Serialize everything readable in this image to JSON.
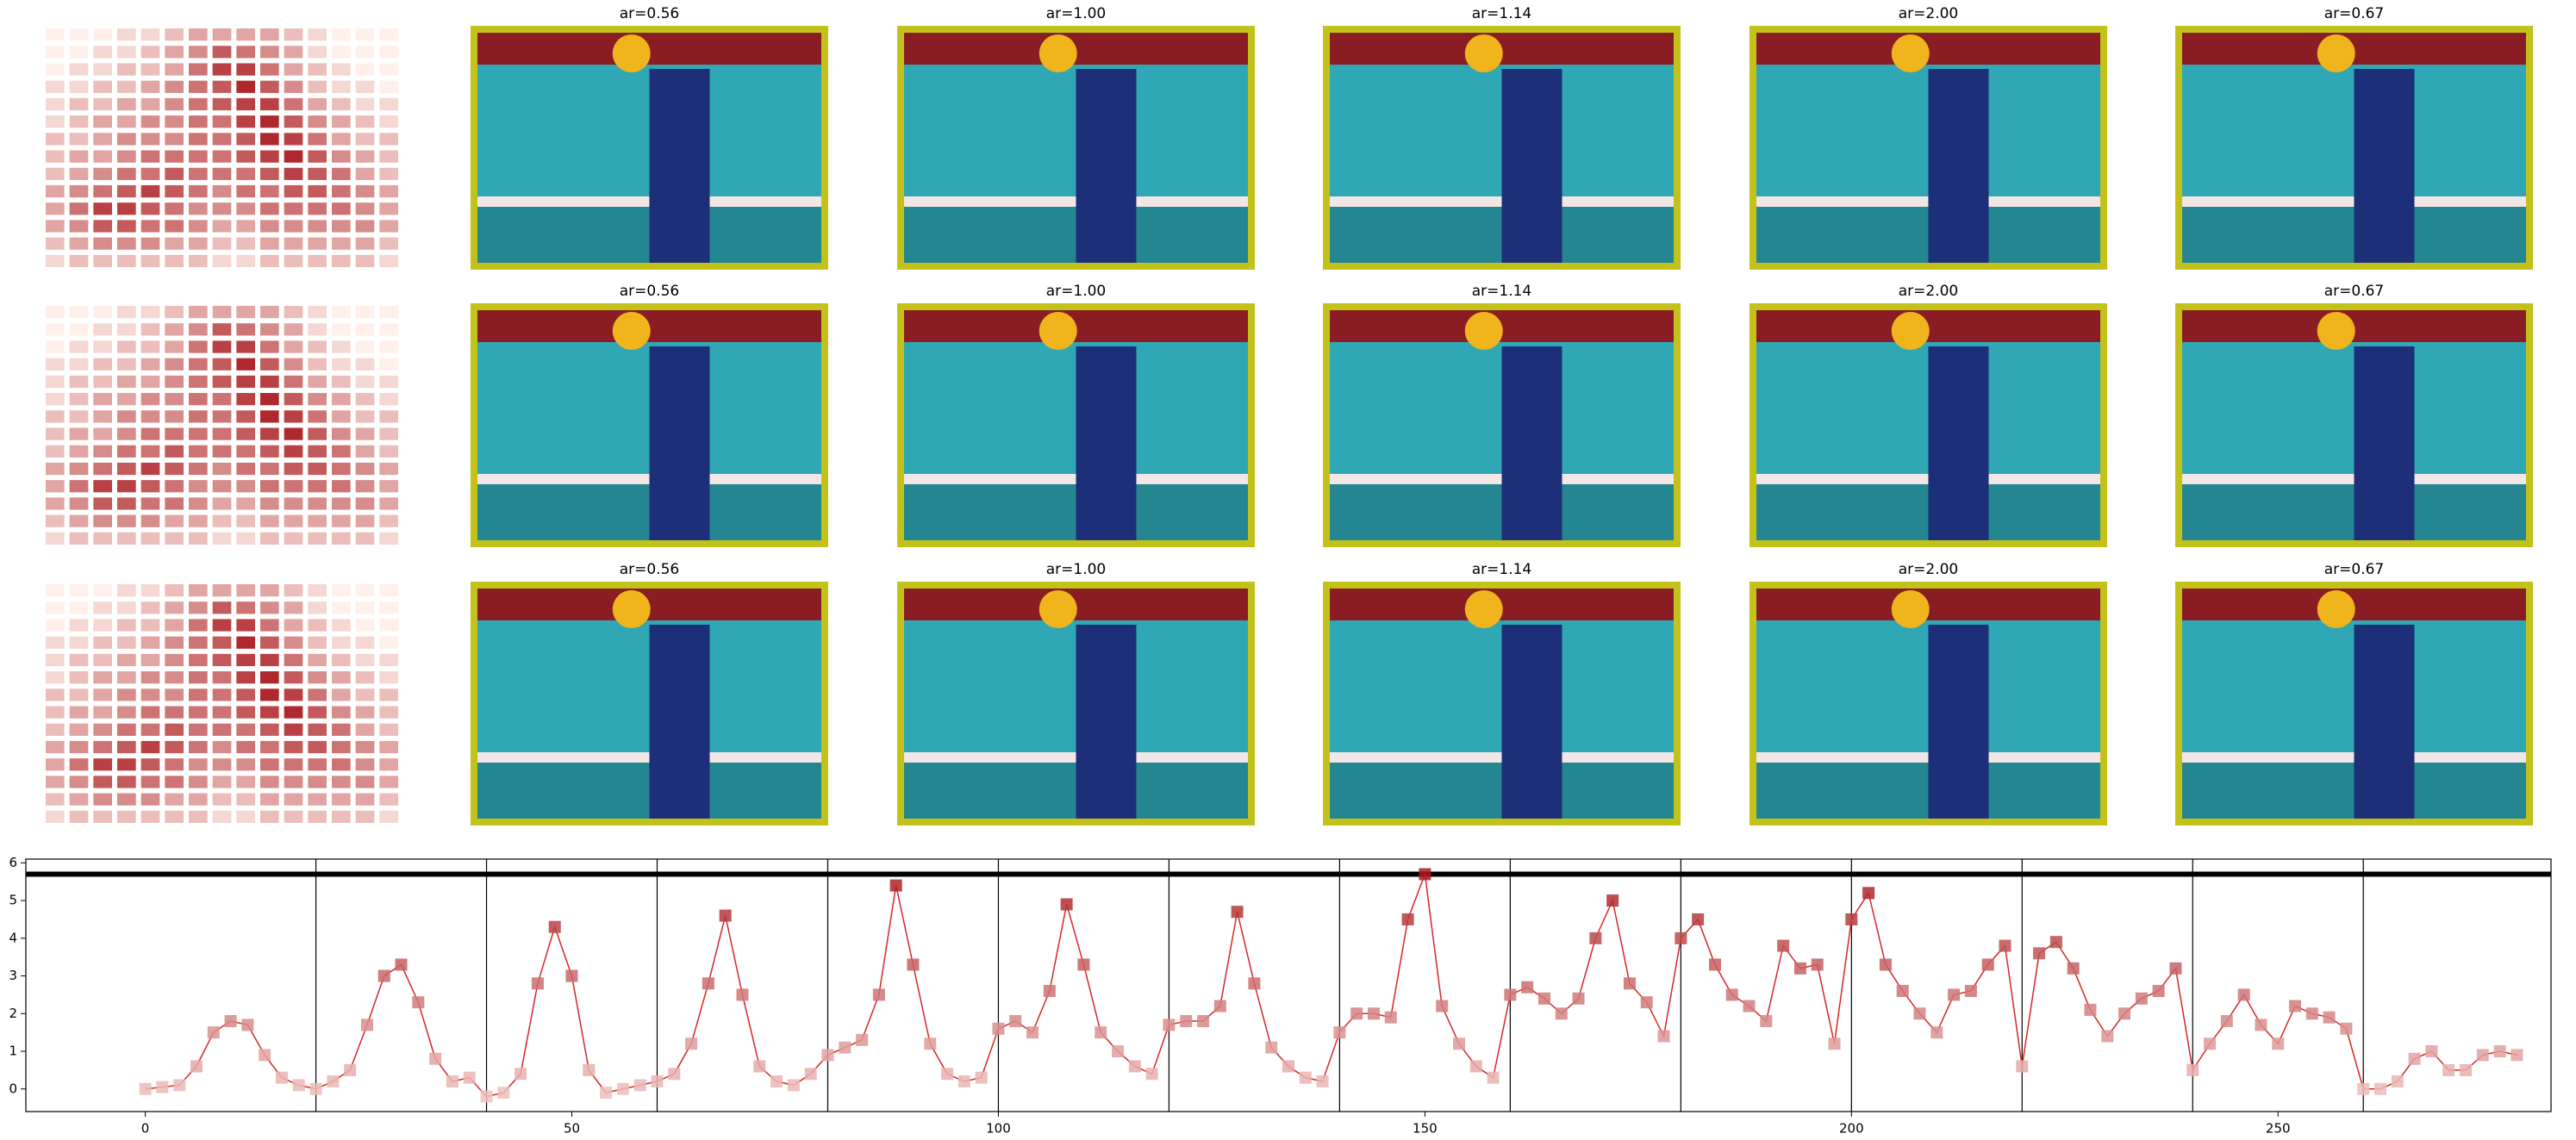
{
  "heatmap": {
    "clim": [
      0,
      9
    ],
    "cells": [
      [
        0,
        0,
        0,
        1,
        1,
        2,
        3,
        3,
        3,
        3,
        2,
        1,
        0,
        0,
        0
      ],
      [
        0,
        0,
        1,
        1,
        2,
        3,
        4,
        6,
        5,
        4,
        3,
        1,
        0,
        0,
        0
      ],
      [
        0,
        1,
        1,
        2,
        2,
        3,
        5,
        7,
        7,
        5,
        3,
        2,
        1,
        0,
        0
      ],
      [
        1,
        1,
        2,
        2,
        3,
        4,
        5,
        6,
        8,
        6,
        4,
        2,
        1,
        1,
        0
      ],
      [
        1,
        2,
        2,
        3,
        3,
        4,
        5,
        6,
        7,
        7,
        5,
        3,
        2,
        1,
        1
      ],
      [
        1,
        2,
        3,
        3,
        4,
        4,
        5,
        5,
        7,
        8,
        6,
        4,
        3,
        2,
        1
      ],
      [
        2,
        2,
        3,
        4,
        4,
        4,
        5,
        5,
        6,
        8,
        7,
        5,
        3,
        2,
        2
      ],
      [
        2,
        3,
        3,
        4,
        5,
        5,
        5,
        5,
        6,
        7,
        8,
        6,
        4,
        3,
        2
      ],
      [
        2,
        3,
        4,
        5,
        5,
        6,
        5,
        5,
        5,
        6,
        7,
        6,
        5,
        3,
        2
      ],
      [
        3,
        4,
        5,
        6,
        7,
        6,
        5,
        4,
        5,
        5,
        6,
        6,
        5,
        4,
        3
      ],
      [
        3,
        5,
        7,
        7,
        6,
        5,
        4,
        4,
        4,
        5,
        5,
        5,
        5,
        4,
        3
      ],
      [
        3,
        4,
        6,
        6,
        5,
        5,
        4,
        3,
        3,
        4,
        4,
        4,
        4,
        4,
        3
      ],
      [
        2,
        3,
        4,
        4,
        4,
        3,
        3,
        2,
        2,
        3,
        3,
        3,
        3,
        3,
        2
      ],
      [
        1,
        2,
        2,
        2,
        2,
        2,
        2,
        1,
        1,
        2,
        2,
        2,
        2,
        2,
        1
      ]
    ]
  },
  "rows": [
    {
      "titles": [
        "ar=0.56",
        "ar=1.00",
        "ar=1.14",
        "ar=2.00",
        "ar=0.67"
      ]
    },
    {
      "titles": [
        "ar=0.56",
        "ar=1.00",
        "ar=1.14",
        "ar=2.00",
        "ar=0.67"
      ]
    },
    {
      "titles": [
        "ar=0.56",
        "ar=1.00",
        "ar=1.14",
        "ar=2.00",
        "ar=0.67"
      ]
    }
  ],
  "chart_data": {
    "type": "line",
    "x": [
      0,
      2,
      4,
      6,
      8,
      10,
      12,
      14,
      16,
      18,
      20,
      22,
      24,
      26,
      28,
      30,
      32,
      34,
      36,
      38,
      40,
      42,
      44,
      46,
      48,
      50,
      52,
      54,
      56,
      58,
      60,
      62,
      64,
      66,
      68,
      70,
      72,
      74,
      76,
      78,
      80,
      82,
      84,
      86,
      88,
      90,
      92,
      94,
      96,
      98,
      100,
      102,
      104,
      106,
      108,
      110,
      112,
      114,
      116,
      118,
      120,
      122,
      124,
      126,
      128,
      130,
      132,
      134,
      136,
      138,
      140,
      142,
      144,
      146,
      148,
      150,
      152,
      154,
      156,
      158,
      160,
      162,
      164,
      166,
      168,
      170,
      172,
      174,
      176,
      178,
      180,
      182,
      184,
      186,
      188,
      190,
      192,
      194,
      196,
      198,
      200,
      202,
      204,
      206,
      208,
      210,
      212,
      214,
      216,
      218,
      220,
      222,
      224,
      226,
      228,
      230,
      232,
      234,
      236,
      238,
      240,
      242,
      244,
      246,
      248,
      250,
      252,
      254,
      256,
      258,
      260,
      262,
      264,
      266,
      268,
      270,
      272,
      274,
      276,
      278
    ],
    "series": [
      {
        "color": "#d62728",
        "values": [
          0,
          0.05,
          0.1,
          0.6,
          1.5,
          1.8,
          1.7,
          0.9,
          0.3,
          0.1,
          0,
          0.2,
          0.5,
          1.7,
          3.0,
          3.3,
          2.3,
          0.8,
          0.2,
          0.3,
          -0.2,
          -0.1,
          0.4,
          2.8,
          4.3,
          3.0,
          0.5,
          -0.1,
          0,
          0.1,
          0.2,
          0.4,
          1.2,
          2.8,
          4.6,
          2.5,
          0.6,
          0.2,
          0.1,
          0.4,
          0.9,
          1.1,
          1.3,
          2.5,
          5.4,
          3.3,
          1.2,
          0.4,
          0.2,
          0.3,
          1.6,
          1.8,
          1.5,
          2.6,
          4.9,
          3.3,
          1.5,
          1.0,
          0.6,
          0.4,
          1.7,
          1.8,
          1.8,
          2.2,
          4.7,
          2.8,
          1.1,
          0.6,
          0.3,
          0.2,
          1.5,
          2.0,
          2.0,
          1.9,
          4.5,
          5.7,
          2.2,
          1.2,
          0.6,
          0.3,
          2.5,
          2.7,
          2.4,
          2.0,
          2.4,
          4.0,
          5.0,
          2.8,
          2.3,
          1.4,
          4.0,
          4.5,
          3.3,
          2.5,
          2.2,
          1.8,
          3.8,
          3.2,
          3.3,
          1.2,
          4.5,
          5.2,
          3.3,
          2.6,
          2.0,
          1.5,
          2.5,
          2.6,
          3.3,
          3.8,
          0.6,
          3.6,
          3.9,
          3.2,
          2.1,
          1.4,
          2.0,
          2.4,
          2.6,
          3.2,
          0.5,
          1.2,
          1.8,
          2.5,
          1.7,
          1.2,
          2.2,
          2.0,
          1.9,
          1.6,
          0,
          0,
          0.2,
          0.8,
          1.0,
          0.5,
          0.5,
          0.9,
          1.0,
          0.9
        ]
      }
    ],
    "xlim": [
      -14,
      282
    ],
    "ylim": [
      -0.6,
      6.1
    ],
    "xticks": [
      0,
      50,
      100,
      150,
      200,
      250
    ],
    "yticks": [
      0,
      1,
      2,
      3,
      4,
      5,
      6
    ],
    "vlines": [
      20,
      40,
      60,
      80,
      100,
      120,
      140,
      160,
      180,
      200,
      220,
      240,
      260
    ],
    "hline": 5.7
  }
}
